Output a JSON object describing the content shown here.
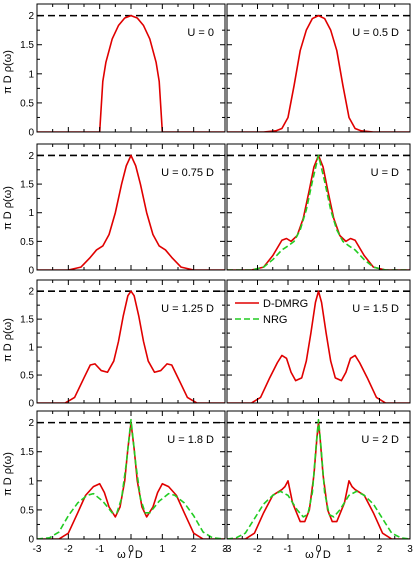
{
  "chart_data": {
    "type": "line",
    "layout": "4x2 panel grid",
    "xlabel": "ω / D",
    "ylabel": "π D ρ(ω)",
    "xlim": [
      -3,
      3
    ],
    "ylim": [
      0,
      2.2
    ],
    "xticks": [
      "-3",
      "-2",
      "-1",
      "0",
      "1",
      "2",
      "3"
    ],
    "yticks": [
      "0",
      "0.5",
      "1",
      "1.5",
      "2"
    ],
    "reference_line": {
      "y": 2,
      "style": "dashed",
      "color": "#000000"
    },
    "legend": {
      "placement": "top-left",
      "panel": 6,
      "entries": [
        "D-DMRG",
        "NRG"
      ]
    },
    "series_styles": {
      "D-DMRG": {
        "color": "#e00000",
        "dash": "solid"
      },
      "NRG": {
        "color": "#22cc22",
        "dash": "dashed"
      }
    },
    "panels": [
      {
        "label": "U = 0",
        "series": [
          {
            "name": "D-DMRG",
            "x": [
              -3,
              -1.01,
              -1,
              -0.9,
              -0.8,
              -0.6,
              -0.4,
              -0.2,
              0,
              0.2,
              0.4,
              0.6,
              0.8,
              0.9,
              1,
              1.01,
              3
            ],
            "y": [
              0,
              0,
              0,
              0.87,
              1.2,
              1.6,
              1.83,
              1.96,
              2,
              1.96,
              1.83,
              1.6,
              1.2,
              0.87,
              0,
              0,
              0
            ]
          }
        ]
      },
      {
        "label": "U = 0.5 D",
        "series": [
          {
            "name": "D-DMRG",
            "x": [
              -3,
              -1.8,
              -1.4,
              -1.2,
              -1,
              -0.8,
              -0.6,
              -0.4,
              -0.2,
              0,
              0.2,
              0.4,
              0.6,
              0.8,
              1,
              1.2,
              1.4,
              1.8,
              3
            ],
            "y": [
              0,
              0,
              0.02,
              0.06,
              0.25,
              0.8,
              1.4,
              1.75,
              1.95,
              2,
              1.95,
              1.75,
              1.4,
              0.8,
              0.25,
              0.06,
              0.02,
              0,
              0
            ]
          }
        ]
      },
      {
        "label": "U = 0.75 D",
        "series": [
          {
            "name": "D-DMRG",
            "x": [
              -3,
              -2,
              -1.6,
              -1.3,
              -1.1,
              -0.9,
              -0.7,
              -0.5,
              -0.3,
              -0.15,
              0,
              0.15,
              0.3,
              0.5,
              0.7,
              0.9,
              1.1,
              1.3,
              1.6,
              2,
              3
            ],
            "y": [
              0,
              0,
              0.05,
              0.22,
              0.35,
              0.42,
              0.62,
              1.0,
              1.5,
              1.82,
              2,
              1.82,
              1.5,
              1.0,
              0.62,
              0.42,
              0.35,
              0.22,
              0.05,
              0,
              0
            ]
          }
        ]
      },
      {
        "label": "U = D",
        "series": [
          {
            "name": "D-DMRG",
            "x": [
              -3,
              -2.2,
              -1.8,
              -1.5,
              -1.2,
              -1.05,
              -0.9,
              -0.7,
              -0.5,
              -0.3,
              -0.15,
              0,
              0.15,
              0.3,
              0.5,
              0.7,
              0.9,
              1.05,
              1.2,
              1.5,
              1.8,
              2.2,
              3
            ],
            "y": [
              0,
              0,
              0.05,
              0.25,
              0.52,
              0.55,
              0.5,
              0.6,
              0.9,
              1.4,
              1.8,
              2,
              1.8,
              1.4,
              0.9,
              0.6,
              0.5,
              0.55,
              0.52,
              0.25,
              0.05,
              0,
              0
            ]
          },
          {
            "name": "NRG",
            "x": [
              -3,
              -2.2,
              -1.8,
              -1.5,
              -1.2,
              -1,
              -0.8,
              -0.6,
              -0.4,
              -0.2,
              0,
              0.2,
              0.4,
              0.6,
              0.8,
              1,
              1.2,
              1.5,
              1.8,
              2.2,
              3
            ],
            "y": [
              0,
              0,
              0.05,
              0.18,
              0.35,
              0.42,
              0.5,
              0.7,
              1.05,
              1.55,
              2,
              1.55,
              1.05,
              0.7,
              0.5,
              0.42,
              0.35,
              0.18,
              0.05,
              0,
              0
            ]
          }
        ]
      },
      {
        "label": "U = 1.25 D",
        "series": [
          {
            "name": "D-DMRG",
            "x": [
              -3,
              -2.1,
              -1.8,
              -1.5,
              -1.3,
              -1.15,
              -0.95,
              -0.75,
              -0.55,
              -0.4,
              -0.25,
              -0.1,
              0,
              0.1,
              0.25,
              0.4,
              0.55,
              0.75,
              0.95,
              1.15,
              1.3,
              1.5,
              1.8,
              2.1,
              3
            ],
            "y": [
              0,
              0,
              0.1,
              0.45,
              0.68,
              0.7,
              0.58,
              0.55,
              0.75,
              1.1,
              1.55,
              1.92,
              2,
              1.92,
              1.55,
              1.1,
              0.75,
              0.55,
              0.58,
              0.7,
              0.68,
              0.45,
              0.1,
              0,
              0
            ]
          }
        ]
      },
      {
        "label": "U = 1.5 D",
        "series": [
          {
            "name": "D-DMRG",
            "x": [
              -3,
              -2.2,
              -1.9,
              -1.6,
              -1.35,
              -1.2,
              -1.05,
              -0.9,
              -0.75,
              -0.55,
              -0.4,
              -0.25,
              -0.1,
              0,
              0.1,
              0.25,
              0.4,
              0.55,
              0.75,
              0.9,
              1.05,
              1.2,
              1.35,
              1.6,
              1.9,
              2.2,
              3
            ],
            "y": [
              0,
              0,
              0.1,
              0.45,
              0.72,
              0.85,
              0.8,
              0.55,
              0.4,
              0.45,
              0.75,
              1.25,
              1.8,
              2,
              1.8,
              1.25,
              0.75,
              0.45,
              0.4,
              0.55,
              0.8,
              0.85,
              0.72,
              0.45,
              0.1,
              0,
              0
            ]
          }
        ]
      },
      {
        "label": "U = 1.8 D",
        "series": [
          {
            "name": "D-DMRG",
            "x": [
              -3,
              -2.3,
              -2.0,
              -1.7,
              -1.45,
              -1.2,
              -1.0,
              -0.85,
              -0.7,
              -0.5,
              -0.35,
              -0.2,
              -0.1,
              0,
              0.1,
              0.2,
              0.35,
              0.5,
              0.7,
              0.85,
              1.0,
              1.2,
              1.45,
              1.7,
              2.0,
              2.3,
              3
            ],
            "y": [
              0,
              0,
              0.1,
              0.45,
              0.75,
              0.9,
              0.95,
              0.8,
              0.55,
              0.38,
              0.55,
              1.0,
              1.55,
              2,
              1.55,
              1.0,
              0.55,
              0.38,
              0.55,
              0.8,
              0.95,
              0.9,
              0.75,
              0.45,
              0.1,
              0,
              0
            ]
          },
          {
            "name": "NRG",
            "x": [
              -3,
              -2.6,
              -2.3,
              -2.0,
              -1.7,
              -1.4,
              -1.2,
              -0.9,
              -0.6,
              -0.45,
              -0.3,
              -0.15,
              0,
              0.15,
              0.3,
              0.45,
              0.6,
              0.9,
              1.2,
              1.4,
              1.7,
              2.0,
              2.3,
              2.6,
              3
            ],
            "y": [
              0,
              0.02,
              0.12,
              0.4,
              0.62,
              0.75,
              0.78,
              0.65,
              0.45,
              0.45,
              0.7,
              1.3,
              2.05,
              1.3,
              0.7,
              0.45,
              0.45,
              0.65,
              0.78,
              0.75,
              0.62,
              0.4,
              0.12,
              0.02,
              0
            ]
          }
        ]
      },
      {
        "label": "U = 2 D",
        "series": [
          {
            "name": "D-DMRG",
            "x": [
              -3,
              -2.4,
              -2.1,
              -1.8,
              -1.5,
              -1.2,
              -1.1,
              -1.0,
              -0.85,
              -0.6,
              -0.45,
              -0.3,
              -0.15,
              -0.05,
              0,
              0.05,
              0.15,
              0.3,
              0.45,
              0.6,
              0.85,
              1.0,
              1.1,
              1.2,
              1.5,
              1.8,
              2.1,
              2.4,
              3
            ],
            "y": [
              0,
              0,
              0.1,
              0.45,
              0.75,
              0.85,
              0.9,
              1.0,
              0.62,
              0.3,
              0.3,
              0.5,
              1.1,
              1.75,
              2,
              1.75,
              1.1,
              0.5,
              0.3,
              0.3,
              0.62,
              1.0,
              0.9,
              0.85,
              0.75,
              0.45,
              0.1,
              0,
              0
            ]
          },
          {
            "name": "NRG",
            "x": [
              -3,
              -2.7,
              -2.4,
              -2.1,
              -1.8,
              -1.5,
              -1.25,
              -1.0,
              -0.7,
              -0.5,
              -0.35,
              -0.2,
              -0.08,
              0,
              0.08,
              0.2,
              0.35,
              0.5,
              0.7,
              1.0,
              1.25,
              1.5,
              1.8,
              2.1,
              2.4,
              2.7,
              3
            ],
            "y": [
              0,
              0.02,
              0.1,
              0.35,
              0.6,
              0.75,
              0.82,
              0.75,
              0.5,
              0.38,
              0.42,
              0.8,
              1.6,
              2.05,
              1.6,
              0.8,
              0.42,
              0.38,
              0.5,
              0.75,
              0.82,
              0.75,
              0.6,
              0.35,
              0.1,
              0.02,
              0
            ]
          }
        ]
      }
    ]
  }
}
